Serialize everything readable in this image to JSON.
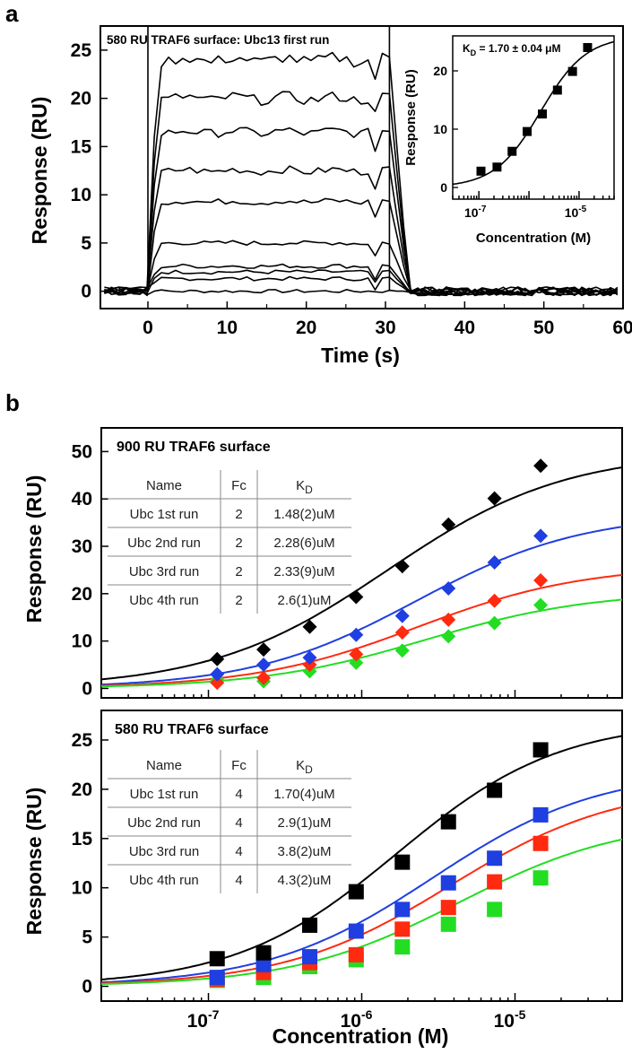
{
  "panel_labels": [
    "a",
    "b"
  ],
  "chart_data": [
    {
      "id": "a-main",
      "type": "line",
      "title": "580 RU TRAF6 surface: Ubc13 first run",
      "xlabel": "Time (s)",
      "ylabel": "Response (RU)",
      "xlim": [
        -6,
        60
      ],
      "ylim": [
        -1.8,
        27.5
      ],
      "xticks": [
        0,
        10,
        20,
        30,
        40,
        50,
        60
      ],
      "yticks": [
        0,
        5,
        10,
        15,
        20,
        25
      ],
      "injection": [
        0,
        30.5
      ],
      "series": [
        {
          "plateau": 0.0
        },
        {
          "plateau": 1.3
        },
        {
          "plateau": 2.0
        },
        {
          "plateau": 2.6
        },
        {
          "plateau": 5.0
        },
        {
          "plateau": 9.3
        },
        {
          "plateau": 12.5
        },
        {
          "plateau": 16.5
        },
        {
          "plateau": 20.0
        },
        {
          "plateau": 24.0
        }
      ]
    },
    {
      "id": "a-inset",
      "type": "scatter",
      "annotation": "K",
      "annotation_sub": "D",
      "annotation_rest": " = 1.70 ± 0.04 μM",
      "xlabel": "Concentration (M)",
      "ylabel": "Response (RU)",
      "xscale": "log",
      "xlim": [
        3e-08,
        5e-05
      ],
      "ylim": [
        -2,
        26
      ],
      "xticks": [
        1e-07,
        1e-05
      ],
      "xtick_labels": [
        {
          "base": "10",
          "exp": "-7"
        },
        {
          "base": "10",
          "exp": "-5"
        }
      ],
      "yticks": [
        0,
        10,
        20
      ],
      "x": [
        1.1e-07,
        2.3e-07,
        4.6e-07,
        9.2e-07,
        1.85e-06,
        3.7e-06,
        7.4e-06,
        1.48e-05
      ],
      "y": [
        2.8,
        3.5,
        6.2,
        9.6,
        12.6,
        16.7,
        19.9,
        24.0
      ],
      "fit": {
        "Rmax": 26,
        "Kd": 1.7e-06,
        "n": 0.95
      }
    },
    {
      "id": "b-top",
      "type": "scatter",
      "title": "900 RU TRAF6 surface",
      "marker": "diamond",
      "ylabel": "Response (RU)",
      "xscale": "log",
      "xlim": [
        2e-08,
        5e-05
      ],
      "ylim": [
        -2,
        55
      ],
      "yticks": [
        0,
        10,
        20,
        30,
        40,
        50
      ],
      "x": [
        1.14e-07,
        2.29e-07,
        4.58e-07,
        9.2e-07,
        1.84e-06,
        3.68e-06,
        7.35e-06,
        1.47e-05
      ],
      "series": [
        {
          "color": "#000000",
          "y": [
            6.2,
            8.2,
            13.0,
            19.3,
            25.8,
            34.6,
            40.1,
            47.0
          ],
          "fit": {
            "Rmax": 50,
            "Kd": 1.48e-06,
            "n": 0.75
          }
        },
        {
          "color": "#1f3fe0",
          "y": [
            3.0,
            5.0,
            6.5,
            11.3,
            15.3,
            21.1,
            26.6,
            32.2
          ],
          "fit": {
            "Rmax": 37,
            "Kd": 2.28e-06,
            "n": 0.8
          }
        },
        {
          "color": "#ff2a10",
          "y": [
            1.2,
            2.2,
            5.0,
            7.2,
            11.8,
            14.5,
            18.5,
            22.8
          ],
          "fit": {
            "Rmax": 26,
            "Kd": 2.33e-06,
            "n": 0.8
          }
        },
        {
          "color": "#22dd22",
          "y": [
            1.8,
            1.5,
            3.6,
            5.4,
            8.0,
            11.0,
            13.8,
            17.6
          ],
          "fit": {
            "Rmax": 20.5,
            "Kd": 2.6e-06,
            "n": 0.8
          }
        }
      ],
      "table": {
        "headers": [
          "Name",
          "Fc",
          "K",
          "D"
        ],
        "rows": [
          [
            "Ubc 1st run",
            "2",
            "1.48(2)uM"
          ],
          [
            "Ubc 2nd run",
            "2",
            "2.28(6)uM"
          ],
          [
            "Ubc 3rd run",
            "2",
            "2.33(9)uM"
          ],
          [
            "Ubc 4th run",
            "2",
            "2.6(1)uM"
          ]
        ]
      }
    },
    {
      "id": "b-bottom",
      "type": "scatter",
      "title": "580 RU TRAF6 surface",
      "marker": "square",
      "xlabel": "Concentration (M)",
      "ylabel": "Response (RU)",
      "xscale": "log",
      "xlim": [
        2e-08,
        5e-05
      ],
      "ylim": [
        -1.5,
        28
      ],
      "xticks": [
        1e-07,
        1e-06,
        1e-05
      ],
      "xtick_labels": [
        {
          "base": "10",
          "exp": "-7"
        },
        {
          "base": "10",
          "exp": "-6"
        },
        {
          "base": "10",
          "exp": "-5"
        }
      ],
      "yticks": [
        0,
        5,
        10,
        15,
        20,
        25
      ],
      "x": [
        1.14e-07,
        2.29e-07,
        4.58e-07,
        9.2e-07,
        1.84e-06,
        3.68e-06,
        7.35e-06,
        1.47e-05
      ],
      "series": [
        {
          "color": "#000000",
          "y": [
            2.8,
            3.4,
            6.2,
            9.6,
            12.6,
            16.7,
            19.9,
            24.0
          ],
          "fit": {
            "Rmax": 27,
            "Kd": 1.7e-06,
            "n": 0.82
          }
        },
        {
          "color": "#1f3fe0",
          "y": [
            0.9,
            2.2,
            3.0,
            5.6,
            7.8,
            10.5,
            13.0,
            17.4
          ],
          "fit": {
            "Rmax": 22,
            "Kd": 2.9e-06,
            "n": 0.8
          }
        },
        {
          "color": "#ff2a10",
          "y": [
            0.7,
            1.4,
            2.4,
            3.2,
            5.8,
            8.0,
            10.6,
            14.5
          ],
          "fit": {
            "Rmax": 20.5,
            "Kd": 3.8e-06,
            "n": 0.8
          }
        },
        {
          "color": "#22dd22",
          "y": [
            0.6,
            0.9,
            2.0,
            2.7,
            4.0,
            6.3,
            7.8,
            11.0
          ],
          "fit": {
            "Rmax": 17,
            "Kd": 4.3e-06,
            "n": 0.8
          }
        }
      ],
      "table": {
        "headers": [
          "Name",
          "Fc",
          "K",
          "D"
        ],
        "rows": [
          [
            "Ubc 1st run",
            "4",
            "1.70(4)uM"
          ],
          [
            "Ubc 2nd run",
            "4",
            "2.9(1)uM"
          ],
          [
            "Ubc 3rd run",
            "4",
            "3.8(2)uM"
          ],
          [
            "Ubc 4th run",
            "4",
            "4.3(2)uM"
          ]
        ]
      }
    }
  ]
}
